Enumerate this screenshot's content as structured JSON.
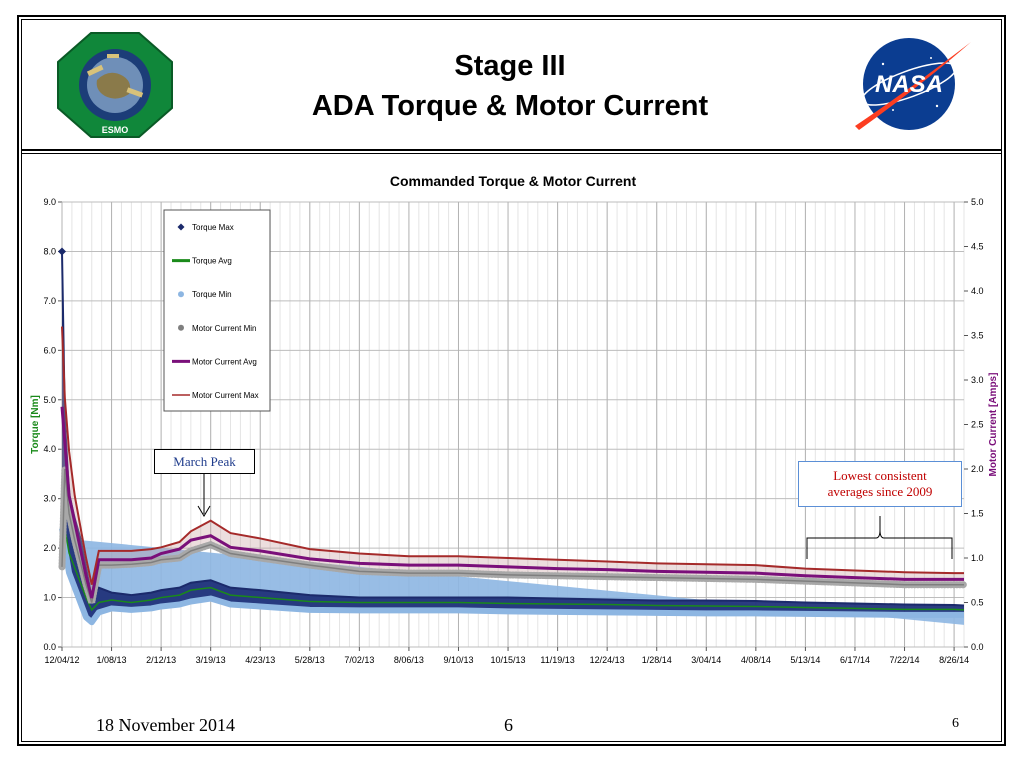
{
  "slide": {
    "title_line1": "Stage III",
    "title_line2": "ADA Torque & Motor Current",
    "footer_date": "18 November 2014",
    "footer_center": "6",
    "page_number": "6",
    "left_logo": {
      "name": "esmo-logo",
      "text": "ESMO",
      "ring_words": [
        "Earth",
        "Science",
        "Mission",
        "Operations",
        "Project",
        "NASA",
        "GSFC"
      ]
    },
    "right_logo": {
      "name": "nasa-meatball-logo",
      "text": "NASA"
    }
  },
  "callouts": {
    "march_peak": "March Peak",
    "lowest_line1": "Lowest consistent",
    "lowest_line2": "averages since 2009"
  },
  "chart_data": {
    "type": "line",
    "title": "Commanded Torque & Motor Current",
    "ylabel": "Torque [Nm]",
    "y2label": "Motor Current [Amps]",
    "ylim": [
      0,
      9
    ],
    "y2lim": [
      0,
      5
    ],
    "yticks": [
      "0.0",
      "1.0",
      "2.0",
      "3.0",
      "4.0",
      "5.0",
      "6.0",
      "7.0",
      "8.0",
      "9.0"
    ],
    "y2ticks": [
      "0.0",
      "0.5",
      "1.0",
      "1.5",
      "2.0",
      "2.5",
      "3.0",
      "3.5",
      "4.0",
      "4.5",
      "5.0"
    ],
    "xlim": [
      "2012-12-04",
      "2014-09-02"
    ],
    "x_tick_dates": [
      "2012-12-04",
      "2013-01-08",
      "2013-02-12",
      "2013-03-19",
      "2013-04-23",
      "2013-05-28",
      "2013-07-02",
      "2013-08-06",
      "2013-09-10",
      "2013-10-15",
      "2013-11-19",
      "2013-12-24",
      "2014-01-28",
      "2014-03-04",
      "2014-04-08",
      "2014-05-13",
      "2014-06-17",
      "2014-07-22",
      "2014-08-26"
    ],
    "x_tick_labels": [
      "12/04/12",
      "1/08/13",
      "2/12/13",
      "3/19/13",
      "4/23/13",
      "5/28/13",
      "7/02/13",
      "8/06/13",
      "9/10/13",
      "10/15/13",
      "11/19/13",
      "12/24/13",
      "1/28/14",
      "3/04/14",
      "4/08/14",
      "5/13/14",
      "6/17/14",
      "7/22/14",
      "8/26/14"
    ],
    "grid": true,
    "legend_position": "upper-left",
    "x": [
      "2012-12-04",
      "2012-12-06",
      "2012-12-09",
      "2012-12-13",
      "2012-12-17",
      "2012-12-21",
      "2012-12-25",
      "2012-12-30",
      "2013-01-08",
      "2013-01-22",
      "2013-02-05",
      "2013-02-12",
      "2013-02-25",
      "2013-03-05",
      "2013-03-19",
      "2013-04-02",
      "2013-04-23",
      "2013-05-28",
      "2013-07-02",
      "2013-08-06",
      "2013-09-10",
      "2013-10-15",
      "2013-11-19",
      "2013-12-24",
      "2014-01-28",
      "2014-03-04",
      "2014-04-08",
      "2014-05-13",
      "2014-06-17",
      "2014-07-22",
      "2014-08-26",
      "2014-09-02"
    ],
    "series": [
      {
        "name": "Torque Max",
        "axis": "left",
        "style": "band-top",
        "color": "#1b2a6b",
        "values": [
          8.0,
          4.6,
          3.1,
          2.6,
          2.2,
          1.6,
          1.0,
          1.2,
          1.1,
          1.05,
          1.1,
          1.15,
          1.2,
          1.3,
          1.35,
          1.2,
          1.15,
          1.05,
          1.0,
          1.0,
          1.0,
          1.0,
          0.98,
          0.96,
          0.94,
          0.94,
          0.93,
          0.9,
          0.88,
          0.86,
          0.85,
          0.84
        ]
      },
      {
        "name": "Torque Avg",
        "axis": "left",
        "style": "line",
        "color": "#1a8a1a",
        "values": [
          3.0,
          2.4,
          1.9,
          1.6,
          1.3,
          1.0,
          0.75,
          0.9,
          0.95,
          0.9,
          0.95,
          1.0,
          1.05,
          1.15,
          1.2,
          1.05,
          1.0,
          0.92,
          0.9,
          0.9,
          0.9,
          0.88,
          0.87,
          0.86,
          0.84,
          0.83,
          0.82,
          0.8,
          0.78,
          0.76,
          0.76,
          0.75
        ]
      },
      {
        "name": "Torque Min",
        "axis": "left",
        "style": "band-bottom",
        "color": "#8db6e2",
        "values": [
          2.4,
          2.0,
          1.5,
          1.2,
          0.9,
          0.6,
          0.5,
          0.7,
          0.78,
          0.75,
          0.78,
          0.82,
          0.86,
          0.92,
          0.98,
          0.86,
          0.82,
          0.75,
          0.74,
          0.74,
          0.74,
          0.72,
          0.71,
          0.7,
          0.69,
          0.68,
          0.68,
          0.67,
          0.66,
          0.65,
          0.65,
          0.65
        ]
      },
      {
        "name": "Motor Current Min",
        "axis": "right",
        "style": "dots",
        "color": "#7f7f7f",
        "values": [
          0.9,
          2.0,
          1.5,
          1.2,
          0.95,
          0.7,
          0.5,
          0.92,
          0.92,
          0.93,
          0.95,
          0.98,
          1.0,
          1.08,
          1.15,
          1.05,
          1.0,
          0.92,
          0.85,
          0.83,
          0.83,
          0.81,
          0.8,
          0.79,
          0.78,
          0.77,
          0.76,
          0.74,
          0.72,
          0.7,
          0.7,
          0.7
        ]
      },
      {
        "name": "Motor Current Avg",
        "axis": "right",
        "style": "line",
        "color": "#7a0f7a",
        "values": [
          2.7,
          2.3,
          1.7,
          1.4,
          1.1,
          0.8,
          0.55,
          0.98,
          0.98,
          0.98,
          1.0,
          1.05,
          1.1,
          1.2,
          1.25,
          1.12,
          1.08,
          0.99,
          0.94,
          0.92,
          0.92,
          0.9,
          0.88,
          0.87,
          0.85,
          0.84,
          0.83,
          0.8,
          0.78,
          0.76,
          0.76,
          0.76
        ]
      },
      {
        "name": "Motor Current Max",
        "axis": "right",
        "style": "line",
        "color": "#a52a2a",
        "values": [
          3.6,
          2.8,
          2.2,
          1.7,
          1.35,
          1.0,
          0.7,
          1.08,
          1.08,
          1.08,
          1.1,
          1.12,
          1.18,
          1.3,
          1.42,
          1.28,
          1.22,
          1.1,
          1.05,
          1.02,
          1.02,
          1.0,
          0.98,
          0.96,
          0.94,
          0.93,
          0.92,
          0.88,
          0.86,
          0.84,
          0.83,
          0.83
        ]
      }
    ],
    "annotations": [
      "March Peak",
      "Lowest consistent averages since 2009"
    ]
  }
}
